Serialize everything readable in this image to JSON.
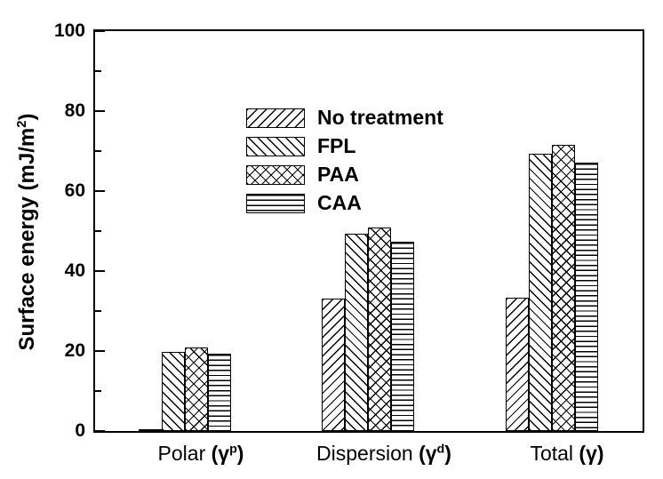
{
  "chart_data": {
    "type": "bar",
    "title": "",
    "xlabel": "",
    "ylabel": "Surface energy (mJ/m2)",
    "ylabel_parts": {
      "main": "Surface energy (mJ/m",
      "sup": "2",
      "close": ")"
    },
    "ylim": [
      0,
      100
    ],
    "yticks_major": [
      0,
      20,
      40,
      60,
      80,
      100
    ],
    "ytick_labels": [
      "0",
      "20",
      "40",
      "60",
      "80",
      "100"
    ],
    "yticks_minor": [
      10,
      30,
      50,
      70,
      90
    ],
    "grid": false,
    "frame": "full-box",
    "tick_direction": "in",
    "legend_position": "upper-left-inside",
    "categories": [
      {
        "name": "Polar",
        "paren_open": "(",
        "symbol": "γ",
        "symbol_sup": "p",
        "paren_close": ")"
      },
      {
        "name": "Dispersion",
        "paren_open": "(",
        "symbol": "γ",
        "symbol_sup": "d",
        "paren_close": ")"
      },
      {
        "name": "Total",
        "paren_open": "(",
        "symbol": "γ",
        "symbol_sup": "",
        "paren_close": ")"
      }
    ],
    "series": [
      {
        "name": "No treatment",
        "pattern": "diagonal-forward",
        "values": [
          0.2,
          33.2,
          33.3
        ]
      },
      {
        "name": "FPL",
        "pattern": "diagonal-backward",
        "values": [
          19.8,
          49.4,
          69.3
        ]
      },
      {
        "name": "PAA",
        "pattern": "crosshatch",
        "values": [
          20.8,
          50.8,
          71.6
        ]
      },
      {
        "name": "CAA",
        "pattern": "horizontal-lines",
        "values": [
          19.4,
          47.3,
          67.0
        ]
      }
    ],
    "colors": {
      "foreground": "#000000",
      "background": "#ffffff",
      "bar_fill": "#ffffff",
      "bar_outline": "#000000"
    }
  }
}
